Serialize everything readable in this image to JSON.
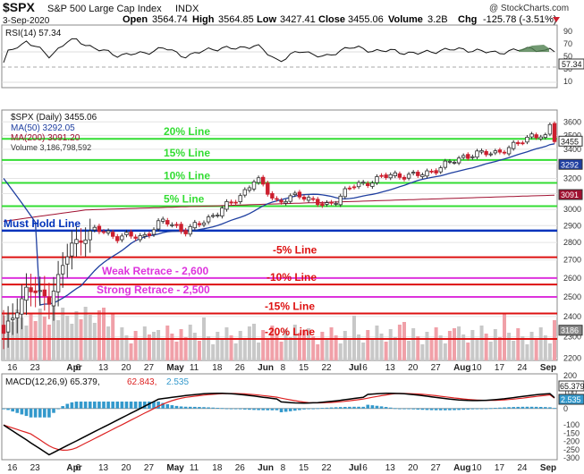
{
  "header": {
    "symbol": "$SPX",
    "name": "S&P 500 Large Cap Index",
    "exchange": "INDX",
    "date": "3-Sep-2020",
    "copyright": "@ StockCharts.com",
    "open_label": "Open",
    "open": "3564.74",
    "high_label": "High",
    "high": "3564.85",
    "low_label": "Low",
    "low": "3427.41",
    "close_label": "Close",
    "close": "3455.06",
    "volume_label": "Volume",
    "volume": "3.2B",
    "chg_label": "Chg",
    "chg": "-125.78 (-3.51%)"
  },
  "colors": {
    "up": "#2e2e2e",
    "down": "#cc1f2e",
    "ma50": "#1f3fa0",
    "ma200": "#a01030",
    "green_line": "#33dd33",
    "red_line": "#dd1111",
    "blue_line": "#0033bb",
    "magenta": "#dd33dd",
    "volume": "#c8c8c8",
    "volume_down": "#f0a0a8",
    "macd": "#000000",
    "signal": "#dd2222",
    "hist": "#3399cc",
    "rsi": "#111111"
  },
  "rsi_panel": {
    "legend": "RSI(14) 57.34",
    "ticks": [
      "90",
      "70",
      "50",
      "30",
      "10"
    ],
    "value_tag": "57.34"
  },
  "price_panel": {
    "legend_main": "$SPX (Daily) 3455.06",
    "legend_ma50": "MA(50) 3292.05",
    "legend_ma200": "MA(200) 3091.20",
    "legend_volume": "Volume 3,186,798,592",
    "ticks": [
      "3600",
      "3500",
      "3400",
      "3300",
      "3200",
      "3100",
      "3000",
      "2900",
      "2800",
      "2700",
      "2600",
      "2500",
      "2400",
      "2300",
      "2200"
    ],
    "tags": {
      "close": "3455",
      "ma50": "3292",
      "ma200": "3091",
      "volume": "3186"
    }
  },
  "annotations": [
    {
      "text": "20% Line",
      "color": "#33dd33",
      "level": 3475
    },
    {
      "text": "15% Line",
      "color": "#33dd33",
      "level": 3325
    },
    {
      "text": "10% Line",
      "color": "#33dd33",
      "level": 3170
    },
    {
      "text": "5% Line",
      "color": "#33dd33",
      "level": 3020
    },
    {
      "text": "Must Hold Line",
      "color": "#0033bb",
      "level": 2870
    },
    {
      "text": "-5% Line",
      "color": "#dd1111",
      "level": 2715
    },
    {
      "text": "Weak Retrace - 2,600",
      "color": "#dd33dd",
      "level": 2600
    },
    {
      "text": "-10% Line",
      "color": "#dd1111",
      "level": 2565
    },
    {
      "text": "Strong Retrace - 2,500",
      "color": "#dd33dd",
      "level": 2500
    },
    {
      "text": "-15% Line",
      "color": "#dd1111",
      "level": 2415
    },
    {
      "text": "-20% Line",
      "color": "#dd1111",
      "level": 2290
    }
  ],
  "macd_panel": {
    "legend_macd": "MACD(12,26,9) 65.379,",
    "legend_signal": "62.843,",
    "legend_hist": "2.535",
    "ticks": [
      "200",
      "100",
      "0",
      "-100",
      "-150",
      "-200",
      "-250",
      "-300"
    ],
    "tags": {
      "macd": "65.379",
      "hist": "2.535"
    }
  },
  "x_axis": {
    "labels": [
      "16",
      "23",
      "Apr",
      "6",
      "13",
      "20",
      "27",
      "May",
      "11",
      "18",
      "26",
      "Jun",
      "8",
      "15",
      "22",
      "Jul",
      "6",
      "13",
      "20",
      "27",
      "Aug",
      "10",
      "17",
      "24",
      "Sep"
    ]
  },
  "chart_data": {
    "type": "line",
    "title": "$SPX S&P 500 Large Cap Index INDX",
    "x_range": [
      "2020-03-12",
      "2020-09-03"
    ],
    "y_range_price": [
      2190,
      3690
    ],
    "scale": "log",
    "horizontal_levels": [
      3475,
      3325,
      3170,
      3020,
      2870,
      2715,
      2600,
      2565,
      2500,
      2415,
      2290
    ],
    "weekly_closes": {
      "x": [
        "Mar 16",
        "Mar 23",
        "Mar 30",
        "Apr 6",
        "Apr 13",
        "Apr 20",
        "Apr 27",
        "May 4",
        "May 11",
        "May 18",
        "May 26",
        "Jun 1",
        "Jun 8",
        "Jun 15",
        "Jun 22",
        "Jun 29",
        "Jul 6",
        "Jul 13",
        "Jul 20",
        "Jul 27",
        "Aug 3",
        "Aug 10",
        "Aug 17",
        "Aug 24",
        "Aug 31"
      ],
      "close": [
        2305,
        2541,
        2489,
        2790,
        2875,
        2837,
        2831,
        2930,
        2864,
        2955,
        3044,
        3194,
        3041,
        3098,
        3009,
        3130,
        3185,
        3225,
        3216,
        3271,
        3351,
        3373,
        3397,
        3508,
        3455
      ]
    },
    "series": [
      {
        "name": "MA(50)",
        "last": 3292.05
      },
      {
        "name": "MA(200)",
        "last": 3091.2
      },
      {
        "name": "RSI(14)",
        "last": 57.34
      },
      {
        "name": "MACD(12,26,9)",
        "last": 65.379
      },
      {
        "name": "Signal",
        "last": 62.843
      },
      {
        "name": "Histogram",
        "last": 2.535
      }
    ]
  }
}
